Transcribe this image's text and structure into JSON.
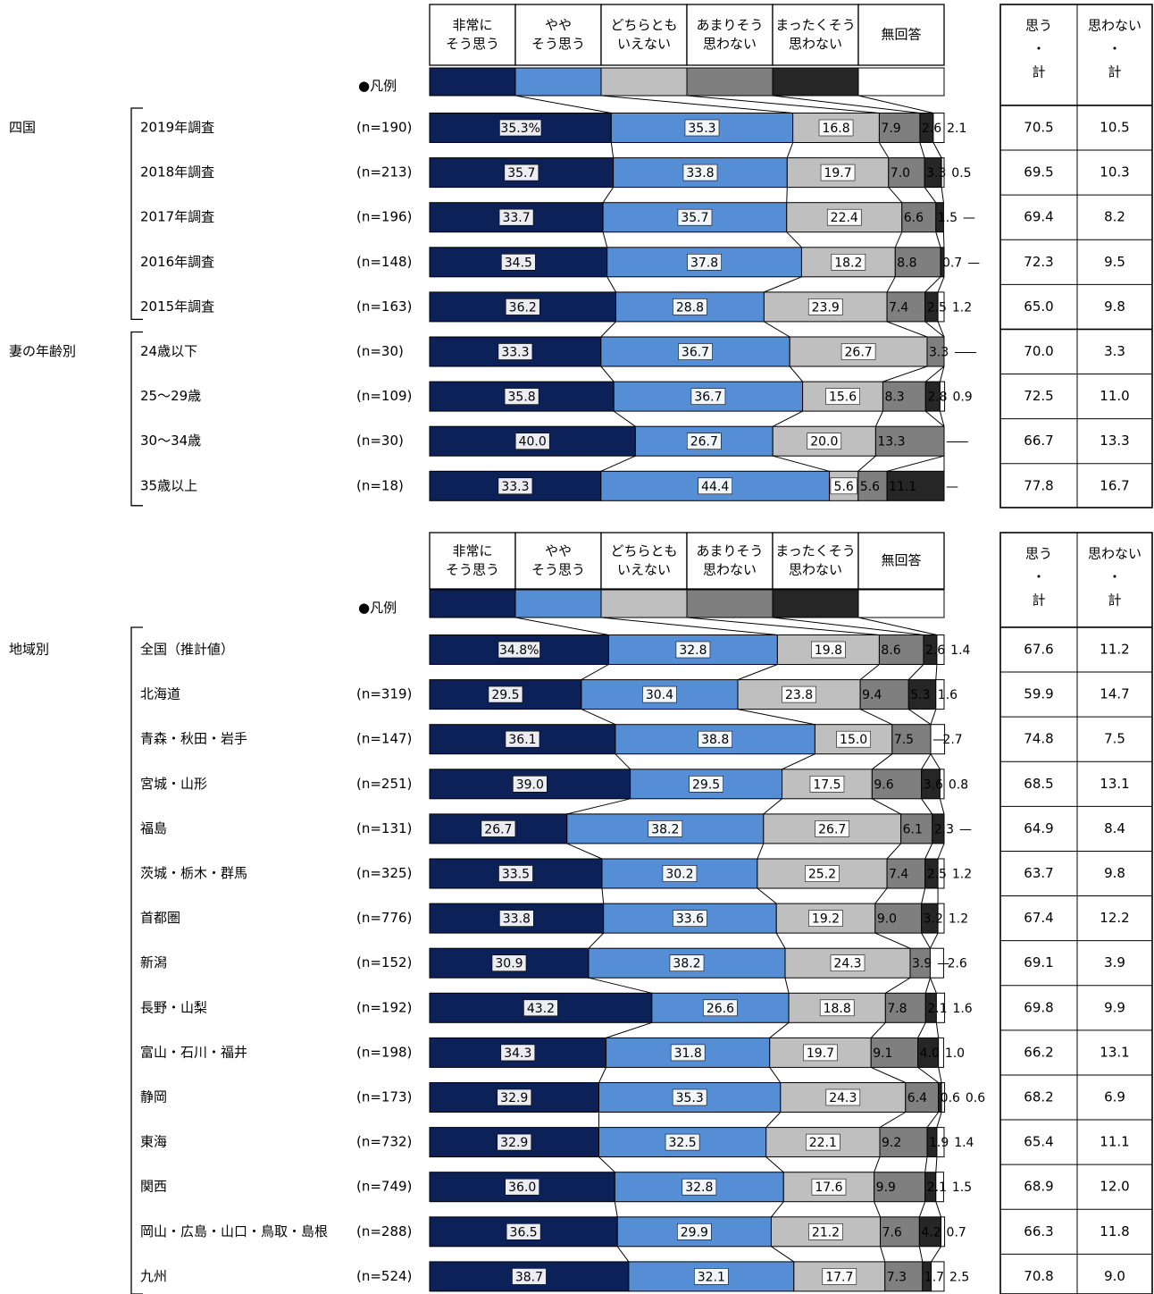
{
  "chart_data": [
    {
      "type": "bar",
      "stacked": true,
      "orientation": "horizontal",
      "legend_label": "●凡例",
      "series": [
        {
          "name": "非常に\nそう思う",
          "color": "#0d2159"
        },
        {
          "name": "やや\nそう思う",
          "color": "#558ed5"
        },
        {
          "name": "どちらとも\nいえない",
          "color": "#bfbfbf"
        },
        {
          "name": "あまりそう\n思わない",
          "color": "#7f7f7f"
        },
        {
          "name": "まったくそう\n思わない",
          "color": "#262626"
        },
        {
          "name": "無回答",
          "color": "#ffffff"
        }
      ],
      "summary_headers": [
        "思う\n・\n計",
        "思わない\n・\n計"
      ],
      "rows": [
        {
          "group": "四国",
          "label": "2019年調査",
          "n": "(n=190)",
          "values": [
            35.3,
            35.3,
            16.8,
            7.9,
            2.6,
            2.1
          ],
          "labels": [
            "35.3%",
            "35.3",
            "16.8",
            "7.9",
            "2.6",
            "2.1"
          ],
          "summary": [
            "70.5",
            "10.5"
          ]
        },
        {
          "group": "",
          "label": "2018年調査",
          "n": "(n=213)",
          "values": [
            35.7,
            33.8,
            19.7,
            7.0,
            3.3,
            0.5
          ],
          "labels": [
            "35.7",
            "33.8",
            "19.7",
            "7.0",
            "3.3",
            "0.5"
          ],
          "summary": [
            "69.5",
            "10.3"
          ]
        },
        {
          "group": "",
          "label": "2017年調査",
          "n": "(n=196)",
          "values": [
            33.7,
            35.7,
            22.4,
            6.6,
            1.5,
            0
          ],
          "labels": [
            "33.7",
            "35.7",
            "22.4",
            "6.6",
            "1.5",
            "—"
          ],
          "summary": [
            "69.4",
            "8.2"
          ]
        },
        {
          "group": "",
          "label": "2016年調査",
          "n": "(n=148)",
          "values": [
            34.5,
            37.8,
            18.2,
            8.8,
            0.7,
            0
          ],
          "labels": [
            "34.5",
            "37.8",
            "18.2",
            "8.8",
            "0.7",
            "—"
          ],
          "summary": [
            "72.3",
            "9.5"
          ]
        },
        {
          "group": "",
          "label": "2015年調査",
          "n": "(n=163)",
          "values": [
            36.2,
            28.8,
            23.9,
            7.4,
            2.5,
            1.2
          ],
          "labels": [
            "36.2",
            "28.8",
            "23.9",
            "7.4",
            "2.5",
            "1.2"
          ],
          "summary": [
            "65.0",
            "9.8"
          ]
        },
        {
          "group": "妻の年齢別",
          "label": "24歳以下",
          "n": "(n=30)",
          "values": [
            33.3,
            36.7,
            26.7,
            3.3,
            0,
            0
          ],
          "labels": [
            "33.3",
            "36.7",
            "26.7",
            "3.3",
            "—",
            "—"
          ],
          "summary": [
            "70.0",
            "3.3"
          ]
        },
        {
          "group": "",
          "label": "25〜29歳",
          "n": "(n=109)",
          "values": [
            35.8,
            36.7,
            15.6,
            8.3,
            2.8,
            0.9
          ],
          "labels": [
            "35.8",
            "36.7",
            "15.6",
            "8.3",
            "2.8",
            "0.9"
          ],
          "summary": [
            "72.5",
            "11.0"
          ]
        },
        {
          "group": "",
          "label": "30〜34歳",
          "n": "(n=30)",
          "values": [
            40.0,
            26.7,
            20.0,
            13.3,
            0,
            0
          ],
          "labels": [
            "40.0",
            "26.7",
            "20.0",
            "13.3",
            "—",
            "—"
          ],
          "summary": [
            "66.7",
            "13.3"
          ]
        },
        {
          "group": "",
          "label": "35歳以上",
          "n": "(n=18)",
          "values": [
            33.3,
            44.4,
            5.6,
            5.6,
            11.1,
            0
          ],
          "labels": [
            "33.3",
            "44.4",
            "5.6",
            "5.6",
            "11.1",
            "—"
          ],
          "summary": [
            "77.8",
            "16.7"
          ]
        }
      ]
    },
    {
      "type": "bar",
      "stacked": true,
      "orientation": "horizontal",
      "legend_label": "●凡例",
      "series": [
        {
          "name": "非常に\nそう思う",
          "color": "#0d2159"
        },
        {
          "name": "やや\nそう思う",
          "color": "#558ed5"
        },
        {
          "name": "どちらとも\nいえない",
          "color": "#bfbfbf"
        },
        {
          "name": "あまりそう\n思わない",
          "color": "#7f7f7f"
        },
        {
          "name": "まったくそう\n思わない",
          "color": "#262626"
        },
        {
          "name": "無回答",
          "color": "#ffffff"
        }
      ],
      "summary_headers": [
        "思う\n・\n計",
        "思わない\n・\n計"
      ],
      "rows": [
        {
          "group": "地域別",
          "label": "全国（推計値）",
          "n": "",
          "values": [
            34.8,
            32.8,
            19.8,
            8.6,
            2.6,
            1.4
          ],
          "labels": [
            "34.8%",
            "32.8",
            "19.8",
            "8.6",
            "2.6",
            "1.4"
          ],
          "summary": [
            "67.6",
            "11.2"
          ]
        },
        {
          "group": "",
          "label": "北海道",
          "n": "(n=319)",
          "values": [
            29.5,
            30.4,
            23.8,
            9.4,
            5.3,
            1.6
          ],
          "labels": [
            "29.5",
            "30.4",
            "23.8",
            "9.4",
            "5.3",
            "1.6"
          ],
          "summary": [
            "59.9",
            "14.7"
          ]
        },
        {
          "group": "",
          "label": "青森・秋田・岩手",
          "n": "(n=147)",
          "values": [
            36.1,
            38.8,
            15.0,
            7.5,
            0,
            2.7
          ],
          "labels": [
            "36.1",
            "38.8",
            "15.0",
            "7.5",
            "—",
            "2.7"
          ],
          "summary": [
            "74.8",
            "7.5"
          ]
        },
        {
          "group": "",
          "label": "宮城・山形",
          "n": "(n=251)",
          "values": [
            39.0,
            29.5,
            17.5,
            9.6,
            3.6,
            0.8
          ],
          "labels": [
            "39.0",
            "29.5",
            "17.5",
            "9.6",
            "3.6",
            "0.8"
          ],
          "summary": [
            "68.5",
            "13.1"
          ]
        },
        {
          "group": "",
          "label": "福島",
          "n": "(n=131)",
          "values": [
            26.7,
            38.2,
            26.7,
            6.1,
            2.3,
            0
          ],
          "labels": [
            "26.7",
            "38.2",
            "26.7",
            "6.1",
            "2.3",
            "—"
          ],
          "summary": [
            "64.9",
            "8.4"
          ]
        },
        {
          "group": "",
          "label": "茨城・栃木・群馬",
          "n": "(n=325)",
          "values": [
            33.5,
            30.2,
            25.2,
            7.4,
            2.5,
            1.2
          ],
          "labels": [
            "33.5",
            "30.2",
            "25.2",
            "7.4",
            "2.5",
            "1.2"
          ],
          "summary": [
            "63.7",
            "9.8"
          ]
        },
        {
          "group": "",
          "label": "首都圏",
          "n": "(n=776)",
          "values": [
            33.8,
            33.6,
            19.2,
            9.0,
            3.2,
            1.2
          ],
          "labels": [
            "33.8",
            "33.6",
            "19.2",
            "9.0",
            "3.2",
            "1.2"
          ],
          "summary": [
            "67.4",
            "12.2"
          ]
        },
        {
          "group": "",
          "label": "新潟",
          "n": "(n=152)",
          "values": [
            30.9,
            38.2,
            24.3,
            3.9,
            0,
            2.6
          ],
          "labels": [
            "30.9",
            "38.2",
            "24.3",
            "3.9",
            "—",
            "2.6"
          ],
          "summary": [
            "69.1",
            "3.9"
          ]
        },
        {
          "group": "",
          "label": "長野・山梨",
          "n": "(n=192)",
          "values": [
            43.2,
            26.6,
            18.8,
            7.8,
            2.1,
            1.6
          ],
          "labels": [
            "43.2",
            "26.6",
            "18.8",
            "7.8",
            "2.1",
            "1.6"
          ],
          "summary": [
            "69.8",
            "9.9"
          ]
        },
        {
          "group": "",
          "label": "富山・石川・福井",
          "n": "(n=198)",
          "values": [
            34.3,
            31.8,
            19.7,
            9.1,
            4.0,
            1.0
          ],
          "labels": [
            "34.3",
            "31.8",
            "19.7",
            "9.1",
            "4.0",
            "1.0"
          ],
          "summary": [
            "66.2",
            "13.1"
          ]
        },
        {
          "group": "",
          "label": "静岡",
          "n": "(n=173)",
          "values": [
            32.9,
            35.3,
            24.3,
            6.4,
            0.6,
            0.6
          ],
          "labels": [
            "32.9",
            "35.3",
            "24.3",
            "6.4",
            "0.6",
            "0.6"
          ],
          "summary": [
            "68.2",
            "6.9"
          ]
        },
        {
          "group": "",
          "label": "東海",
          "n": "(n=732)",
          "values": [
            32.9,
            32.5,
            22.1,
            9.2,
            1.9,
            1.4
          ],
          "labels": [
            "32.9",
            "32.5",
            "22.1",
            "9.2",
            "1.9",
            "1.4"
          ],
          "summary": [
            "65.4",
            "11.1"
          ]
        },
        {
          "group": "",
          "label": "関西",
          "n": "(n=749)",
          "values": [
            36.0,
            32.8,
            17.6,
            9.9,
            2.1,
            1.5
          ],
          "labels": [
            "36.0",
            "32.8",
            "17.6",
            "9.9",
            "2.1",
            "1.5"
          ],
          "summary": [
            "68.9",
            "12.0"
          ]
        },
        {
          "group": "",
          "label": "岡山・広島・山口・鳥取・島根",
          "n": "(n=288)",
          "values": [
            36.5,
            29.9,
            21.2,
            7.6,
            4.2,
            0.7
          ],
          "labels": [
            "36.5",
            "29.9",
            "21.2",
            "7.6",
            "4.2",
            "0.7"
          ],
          "summary": [
            "66.3",
            "11.8"
          ]
        },
        {
          "group": "",
          "label": "九州",
          "n": "(n=524)",
          "values": [
            38.7,
            32.1,
            17.7,
            7.3,
            1.7,
            2.5
          ],
          "labels": [
            "38.7",
            "32.1",
            "17.7",
            "7.3",
            "1.7",
            "2.5"
          ],
          "summary": [
            "70.8",
            "9.0"
          ]
        }
      ]
    }
  ]
}
